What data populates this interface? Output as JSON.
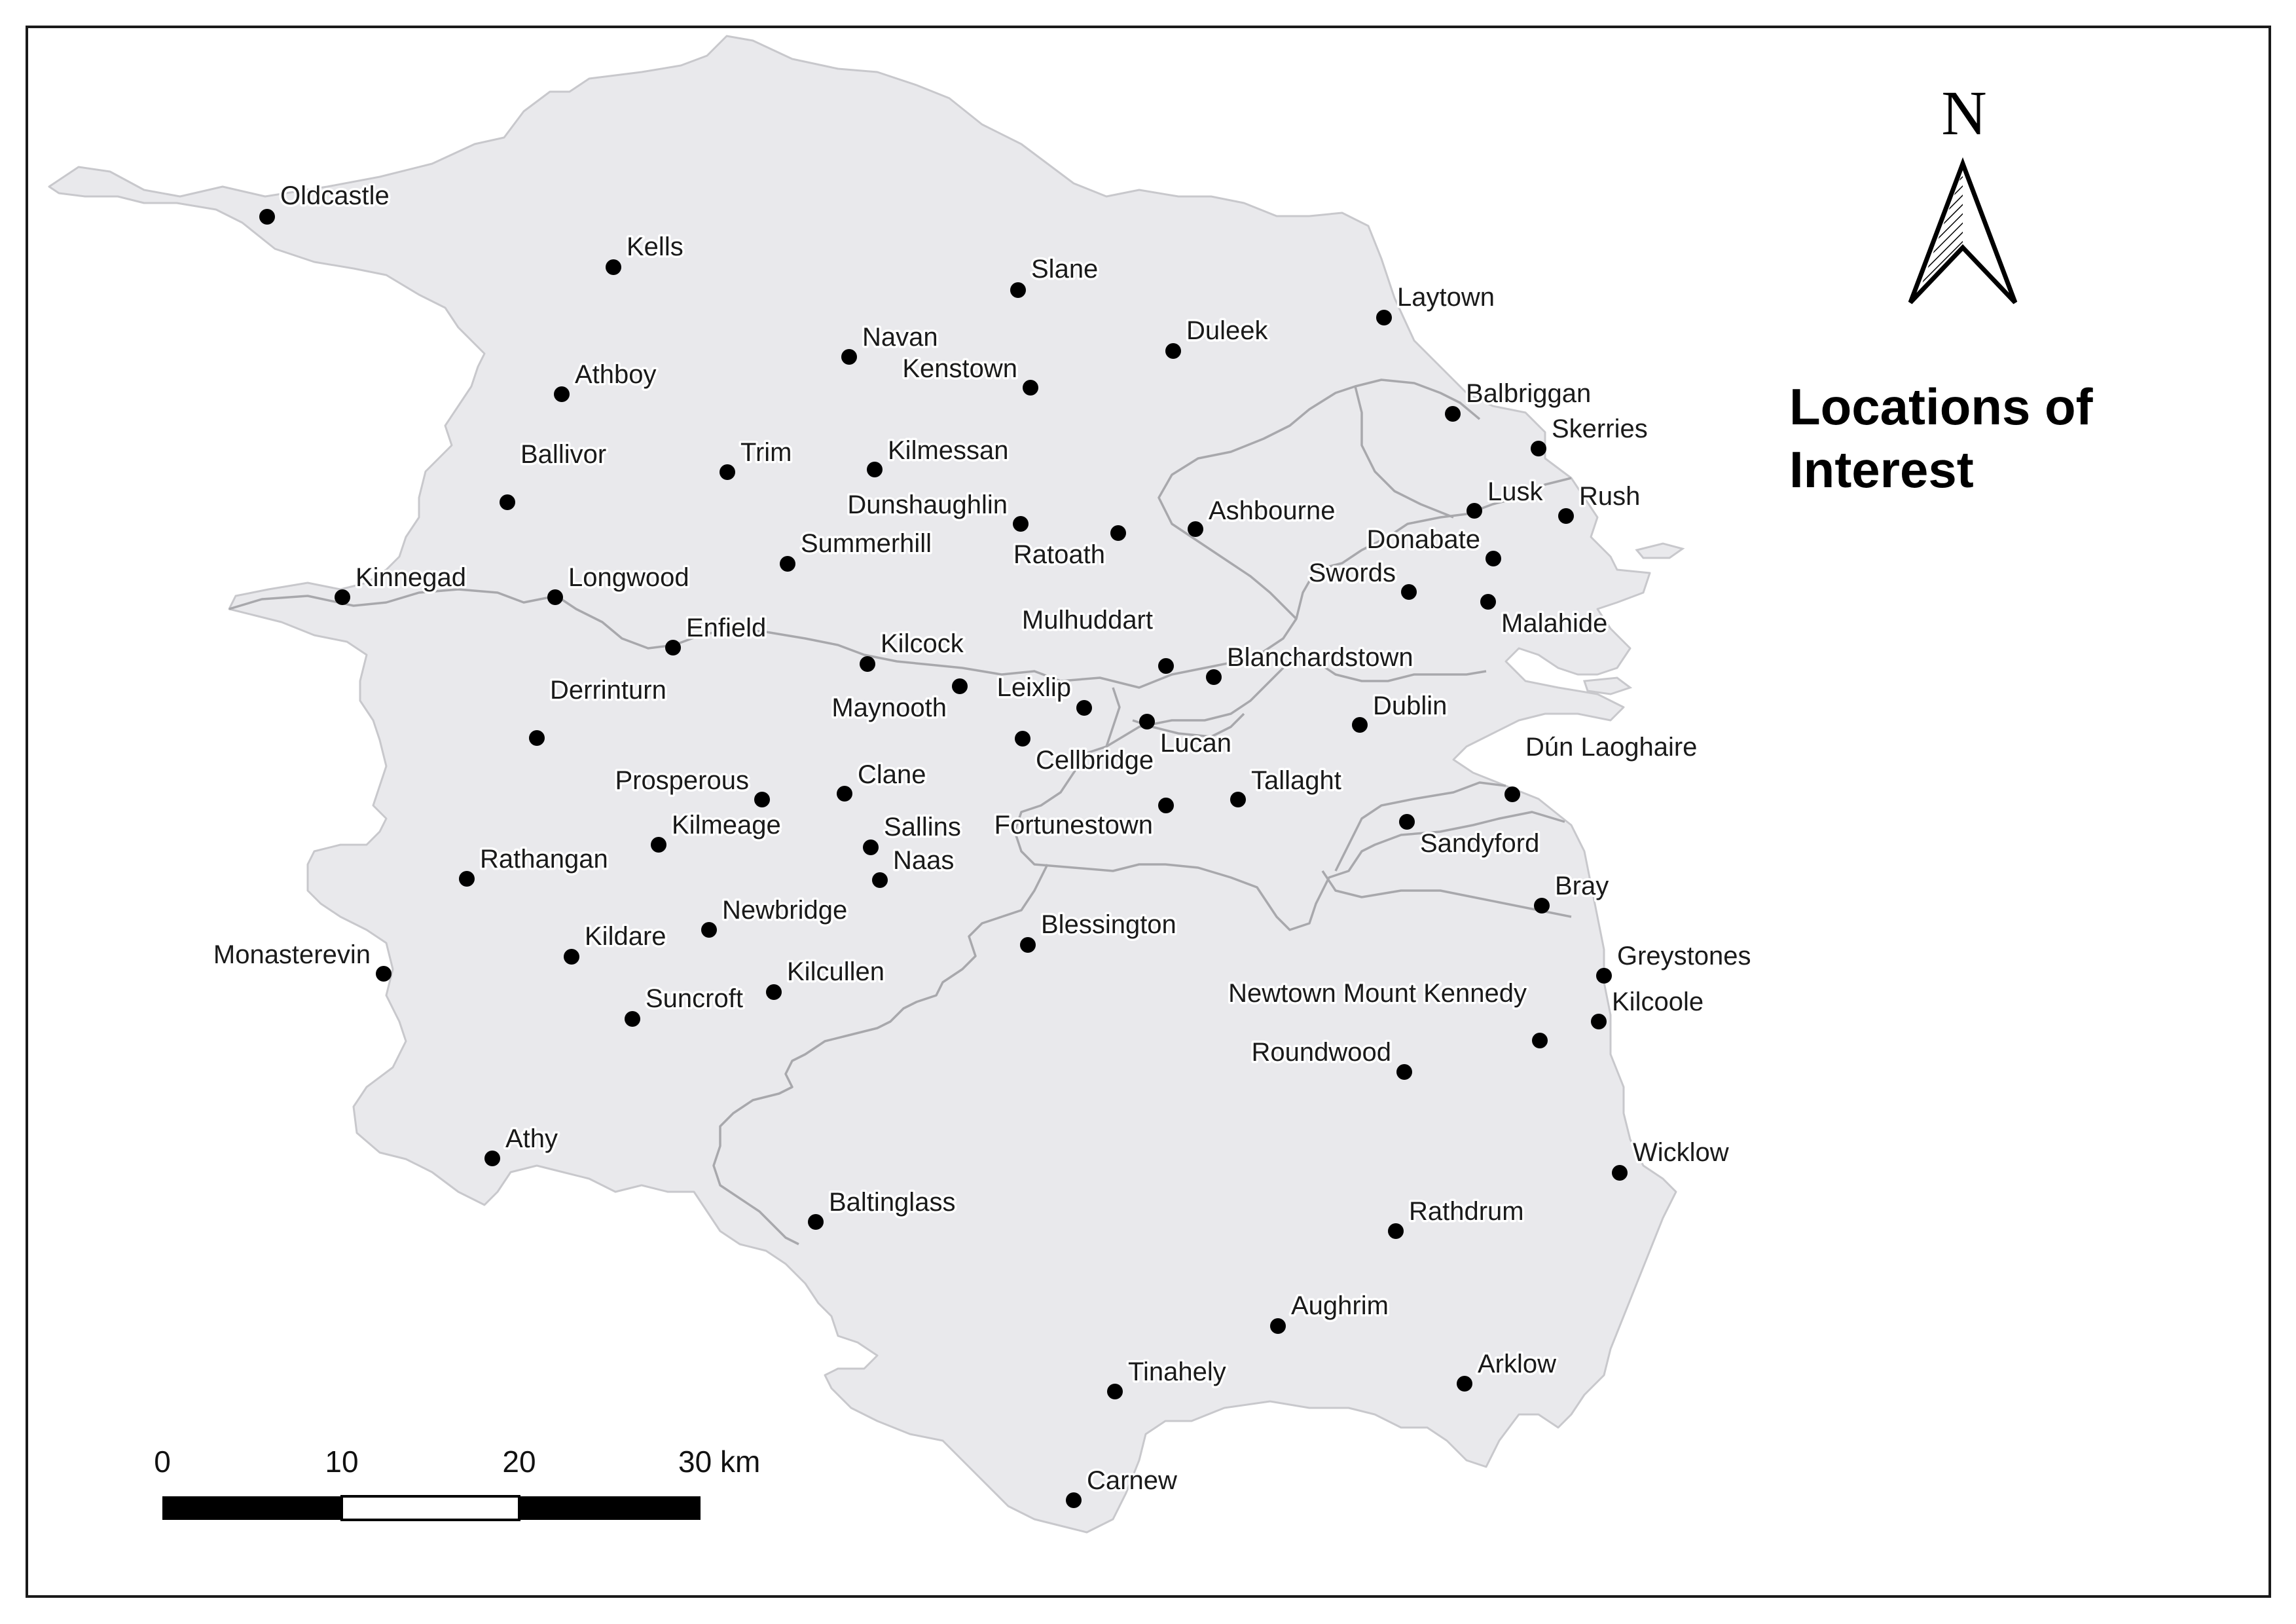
{
  "map": {
    "title_line1": "Locations of",
    "title_line2": "Interest",
    "north_label": "N",
    "land_color": "#e9e9ec",
    "border_color": "#a8a8ac",
    "marker_color": "#000000"
  },
  "scale_bar": {
    "labels": [
      "0",
      "10",
      "20",
      "30 km"
    ]
  },
  "places": [
    "Oldcastle",
    "Kells",
    "Slane",
    "Laytown",
    "Navan",
    "Duleek",
    "Kenstown",
    "Athboy",
    "Balbriggan",
    "Skerries",
    "Ballivor",
    "Trim",
    "Kilmessan",
    "Lusk",
    "Rush",
    "Dunshaughlin",
    "Ashbourne",
    "Ratoath",
    "Summerhill",
    "Donabate",
    "Kinnegad",
    "Longwood",
    "Swords",
    "Malahide",
    "Enfield",
    "Mulhuddart",
    "Kilcock",
    "Blanchardstown",
    "Derrinturn",
    "Leixlip",
    "Maynooth",
    "Dublin",
    "Lucan",
    "Cellbridge",
    "Dún Laoghaire",
    "Prosperous",
    "Clane",
    "Tallaght",
    "Sallins",
    "Kilmeage",
    "Fortunestown",
    "Sandyford",
    "Naas",
    "Rathangan",
    "Bray",
    "Newbridge",
    "Blessington",
    "Kildare",
    "Monasterevin",
    "Greystones",
    "Kilcullen",
    "Newtown Mount Kennedy",
    "Suncroft",
    "Kilcoole",
    "Roundwood",
    "Athy",
    "Wicklow",
    "Baltinglass",
    "Rathdrum",
    "Aughrim",
    "Tinahely",
    "Arklow",
    "Carnew"
  ]
}
